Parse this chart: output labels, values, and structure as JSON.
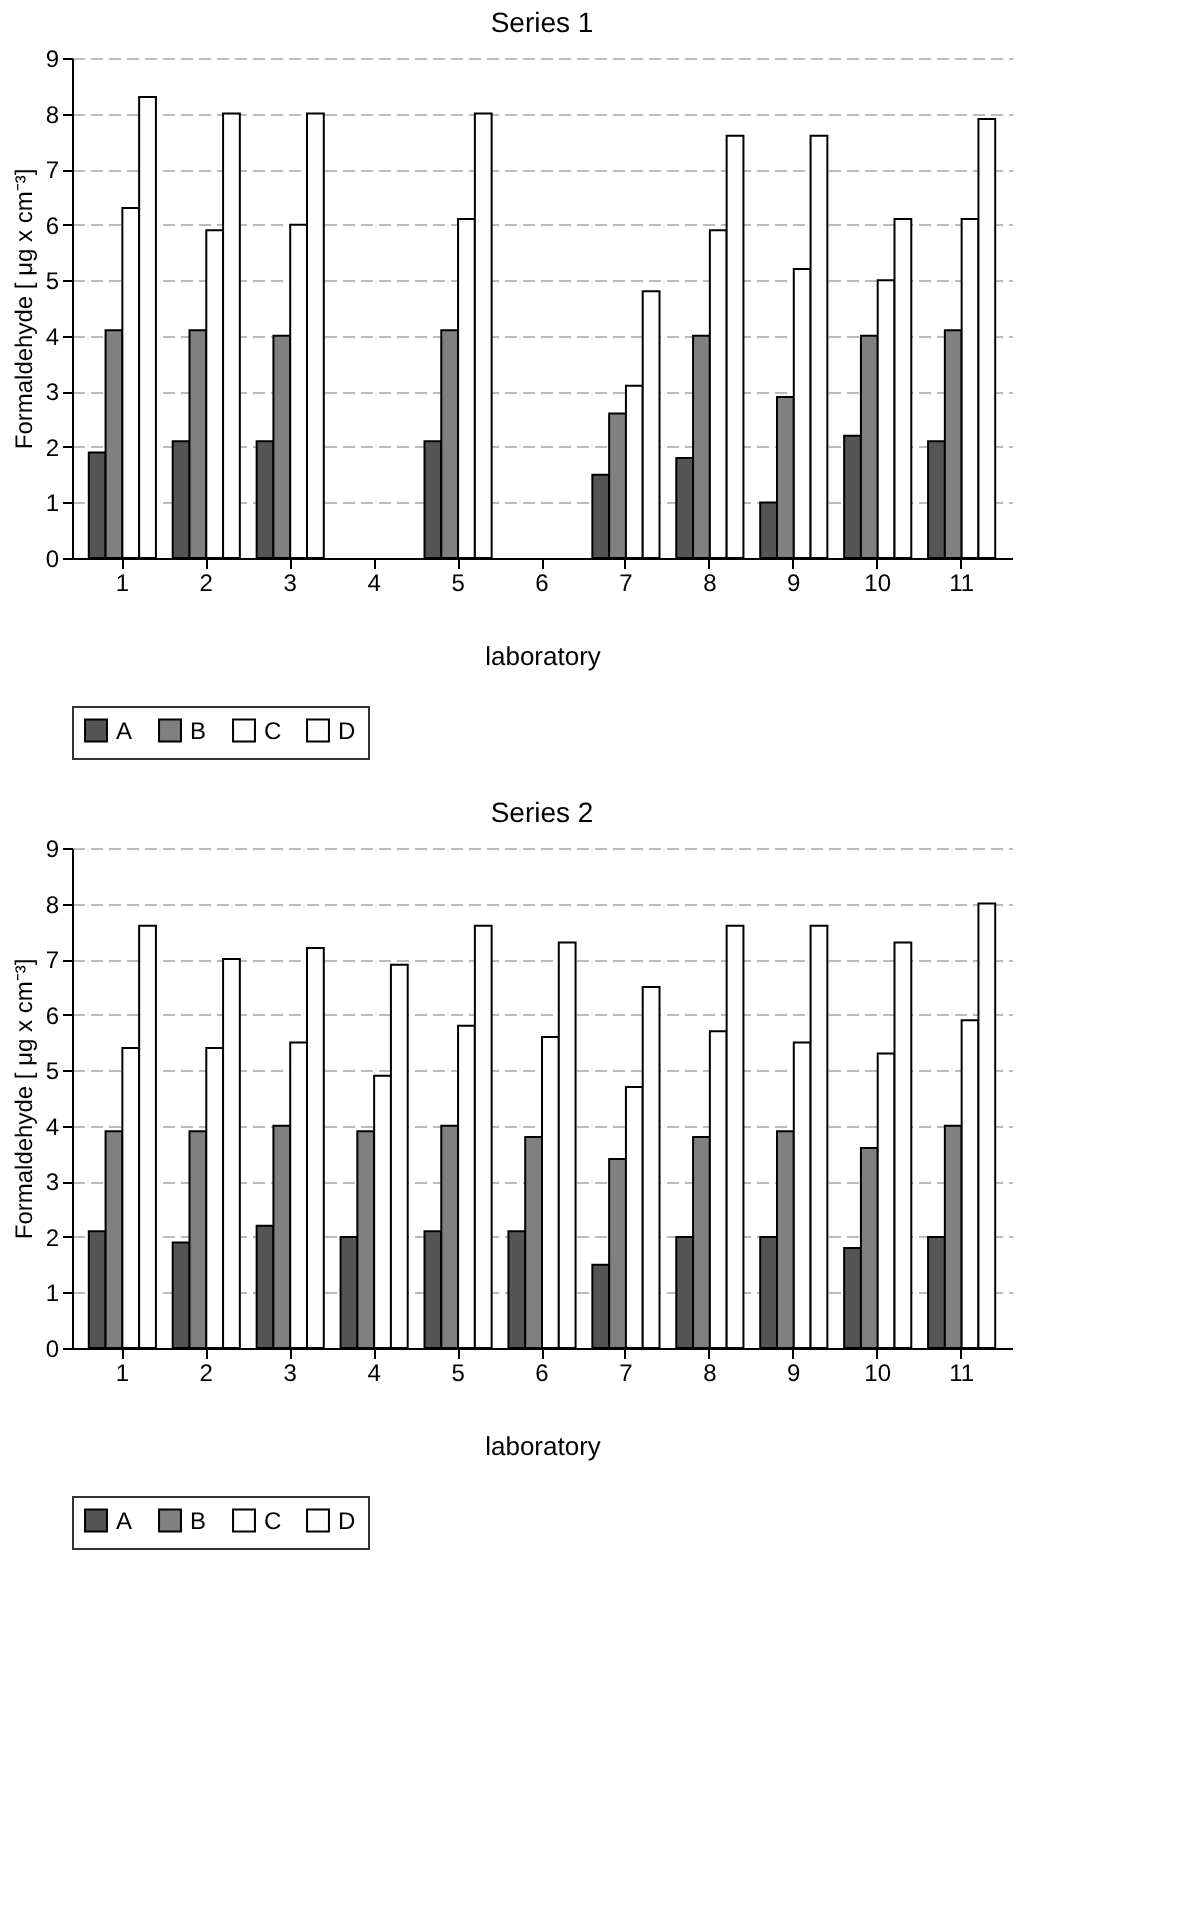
{
  "chart_data": [
    {
      "type": "bar",
      "title": "Series 1",
      "xlabel": "laboratory",
      "ylabel": "Formaldehyde [ μg x cm⁻³]",
      "categories": [
        "1",
        "2",
        "3",
        "4",
        "5",
        "6",
        "7",
        "8",
        "9",
        "10",
        "11"
      ],
      "series": [
        {
          "name": "A",
          "color": "#555555",
          "values": [
            1.9,
            2.1,
            2.1,
            null,
            2.1,
            null,
            1.5,
            1.8,
            1.0,
            2.2,
            2.1
          ]
        },
        {
          "name": "B",
          "color": "#808080",
          "values": [
            4.1,
            4.1,
            4.0,
            null,
            4.1,
            null,
            2.6,
            4.0,
            2.9,
            4.0,
            4.1
          ]
        },
        {
          "name": "C",
          "color": "#ffffff",
          "values": [
            6.3,
            5.9,
            6.0,
            null,
            6.1,
            null,
            3.1,
            5.9,
            5.2,
            5.0,
            6.1
          ]
        },
        {
          "name": "D",
          "color": "#fefefe",
          "values": [
            8.3,
            8.0,
            8.0,
            null,
            8.0,
            null,
            4.8,
            7.6,
            7.6,
            6.1,
            7.9
          ]
        }
      ],
      "ylim": [
        0,
        9
      ],
      "yticks": [
        0,
        1,
        2,
        3,
        4,
        5,
        6,
        7,
        8,
        9
      ],
      "grid": "y",
      "legend": "bottom"
    },
    {
      "type": "bar",
      "title": "Series 2",
      "xlabel": "laboratory",
      "ylabel": "Formaldehyde [ μg x cm⁻³]",
      "categories": [
        "1",
        "2",
        "3",
        "4",
        "5",
        "6",
        "7",
        "8",
        "9",
        "10",
        "11"
      ],
      "series": [
        {
          "name": "A",
          "color": "#555555",
          "values": [
            2.1,
            1.9,
            2.2,
            2.0,
            2.1,
            2.1,
            1.5,
            2.0,
            2.0,
            1.8,
            2.0
          ]
        },
        {
          "name": "B",
          "color": "#808080",
          "values": [
            3.9,
            3.9,
            4.0,
            3.9,
            4.0,
            3.8,
            3.4,
            3.8,
            3.9,
            3.6,
            4.0
          ]
        },
        {
          "name": "C",
          "color": "#ffffff",
          "values": [
            5.4,
            5.4,
            5.5,
            4.9,
            5.8,
            5.6,
            4.7,
            5.7,
            5.5,
            5.3,
            5.9
          ]
        },
        {
          "name": "D",
          "color": "#fefefe",
          "values": [
            7.6,
            7.0,
            7.2,
            6.9,
            7.6,
            7.3,
            6.5,
            7.6,
            7.6,
            7.3,
            8.0
          ]
        }
      ],
      "ylim": [
        0,
        9
      ],
      "yticks": [
        0,
        1,
        2,
        3,
        4,
        5,
        6,
        7,
        8,
        9
      ],
      "grid": "y",
      "legend": "bottom"
    }
  ]
}
